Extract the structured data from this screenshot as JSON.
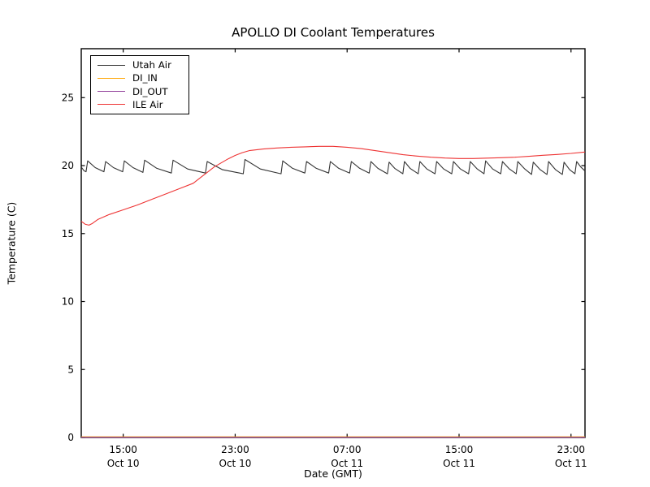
{
  "chart_data": {
    "type": "line",
    "title": "APOLLO DI Coolant Temperatures",
    "xlabel": "Date (GMT)",
    "ylabel": "Temperature (C)",
    "x_unit": "hours since Oct 10 12:00 GMT",
    "xlim": [
      0,
      36
    ],
    "ylim": [
      0,
      28.6
    ],
    "grid": false,
    "legend_position": "upper left",
    "yticks": [
      0,
      5,
      10,
      15,
      20,
      25
    ],
    "xticks": [
      {
        "t": 3,
        "time": "15:00",
        "date": "Oct 10"
      },
      {
        "t": 11,
        "time": "23:00",
        "date": "Oct 10"
      },
      {
        "t": 19,
        "time": "07:00",
        "date": "Oct 11"
      },
      {
        "t": 27,
        "time": "15:00",
        "date": "Oct 11"
      },
      {
        "t": 35,
        "time": "23:00",
        "date": "Oct 11"
      }
    ],
    "series": [
      {
        "name": "Utah Air",
        "color": "#333333",
        "points": [
          [
            0,
            19.9
          ],
          [
            0.2,
            19.62
          ],
          [
            0.34,
            19.55
          ],
          [
            0.46,
            20.35
          ],
          [
            1.0,
            19.85
          ],
          [
            1.62,
            19.55
          ],
          [
            1.74,
            20.3
          ],
          [
            2.3,
            19.85
          ],
          [
            2.96,
            19.55
          ],
          [
            3.08,
            20.35
          ],
          [
            3.7,
            19.85
          ],
          [
            4.41,
            19.5
          ],
          [
            4.53,
            20.4
          ],
          [
            5.4,
            19.8
          ],
          [
            6.44,
            19.45
          ],
          [
            6.56,
            20.4
          ],
          [
            7.6,
            19.75
          ],
          [
            8.88,
            19.45
          ],
          [
            9.0,
            20.3
          ],
          [
            10.1,
            19.7
          ],
          [
            11.58,
            19.4
          ],
          [
            11.7,
            20.45
          ],
          [
            12.8,
            19.75
          ],
          [
            14.28,
            19.4
          ],
          [
            14.4,
            20.35
          ],
          [
            15.1,
            19.8
          ],
          [
            15.98,
            19.45
          ],
          [
            16.1,
            20.3
          ],
          [
            16.8,
            19.8
          ],
          [
            17.68,
            19.45
          ],
          [
            17.8,
            20.3
          ],
          [
            18.4,
            19.8
          ],
          [
            19.18,
            19.45
          ],
          [
            19.3,
            20.3
          ],
          [
            19.9,
            19.8
          ],
          [
            20.58,
            19.45
          ],
          [
            20.7,
            20.3
          ],
          [
            21.2,
            19.8
          ],
          [
            21.88,
            19.4
          ],
          [
            22.0,
            20.25
          ],
          [
            22.4,
            19.8
          ],
          [
            22.98,
            19.4
          ],
          [
            23.1,
            20.3
          ],
          [
            23.5,
            19.8
          ],
          [
            24.08,
            19.4
          ],
          [
            24.2,
            20.3
          ],
          [
            24.7,
            19.75
          ],
          [
            25.28,
            19.4
          ],
          [
            25.4,
            20.3
          ],
          [
            25.9,
            19.75
          ],
          [
            26.48,
            19.4
          ],
          [
            26.6,
            20.3
          ],
          [
            27.1,
            19.75
          ],
          [
            27.68,
            19.4
          ],
          [
            27.8,
            20.3
          ],
          [
            28.3,
            19.75
          ],
          [
            28.78,
            19.4
          ],
          [
            28.9,
            20.35
          ],
          [
            29.4,
            19.75
          ],
          [
            29.98,
            19.4
          ],
          [
            30.1,
            20.3
          ],
          [
            30.6,
            19.75
          ],
          [
            31.08,
            19.4
          ],
          [
            31.2,
            20.3
          ],
          [
            31.7,
            19.75
          ],
          [
            32.18,
            19.35
          ],
          [
            32.3,
            20.25
          ],
          [
            32.8,
            19.7
          ],
          [
            33.28,
            19.35
          ],
          [
            33.4,
            20.3
          ],
          [
            33.9,
            19.7
          ],
          [
            34.38,
            19.35
          ],
          [
            34.5,
            20.25
          ],
          [
            34.9,
            19.7
          ],
          [
            35.28,
            19.4
          ],
          [
            35.4,
            20.3
          ],
          [
            35.7,
            19.9
          ],
          [
            36,
            19.6
          ]
        ]
      },
      {
        "name": "DI_IN",
        "color": "#ffa500",
        "points": [
          [
            0,
            0
          ],
          [
            36,
            0
          ]
        ]
      },
      {
        "name": "DI_OUT",
        "color": "#903d99",
        "points": [
          [
            0,
            0
          ],
          [
            36,
            0
          ]
        ]
      },
      {
        "name": "ILE Air",
        "color": "#ee3333",
        "points": [
          [
            0,
            15.9
          ],
          [
            0.3,
            15.68
          ],
          [
            0.55,
            15.62
          ],
          [
            0.8,
            15.75
          ],
          [
            1.2,
            16.05
          ],
          [
            2,
            16.4
          ],
          [
            3,
            16.75
          ],
          [
            4,
            17.1
          ],
          [
            5,
            17.5
          ],
          [
            6,
            17.9
          ],
          [
            7,
            18.3
          ],
          [
            8,
            18.7
          ],
          [
            8.5,
            19.1
          ],
          [
            9,
            19.5
          ],
          [
            9.5,
            19.9
          ],
          [
            10,
            20.2
          ],
          [
            10.5,
            20.5
          ],
          [
            11,
            20.75
          ],
          [
            11.5,
            20.95
          ],
          [
            12,
            21.1
          ],
          [
            13,
            21.22
          ],
          [
            14,
            21.3
          ],
          [
            15,
            21.35
          ],
          [
            16,
            21.38
          ],
          [
            17,
            21.42
          ],
          [
            18,
            21.42
          ],
          [
            19,
            21.35
          ],
          [
            20,
            21.25
          ],
          [
            21,
            21.1
          ],
          [
            22,
            20.95
          ],
          [
            23,
            20.8
          ],
          [
            24,
            20.7
          ],
          [
            25,
            20.62
          ],
          [
            26,
            20.56
          ],
          [
            27,
            20.52
          ],
          [
            28,
            20.52
          ],
          [
            29,
            20.55
          ],
          [
            30,
            20.58
          ],
          [
            31,
            20.62
          ],
          [
            32,
            20.68
          ],
          [
            33,
            20.76
          ],
          [
            34,
            20.82
          ],
          [
            35,
            20.9
          ],
          [
            36,
            21.0
          ]
        ]
      }
    ]
  }
}
